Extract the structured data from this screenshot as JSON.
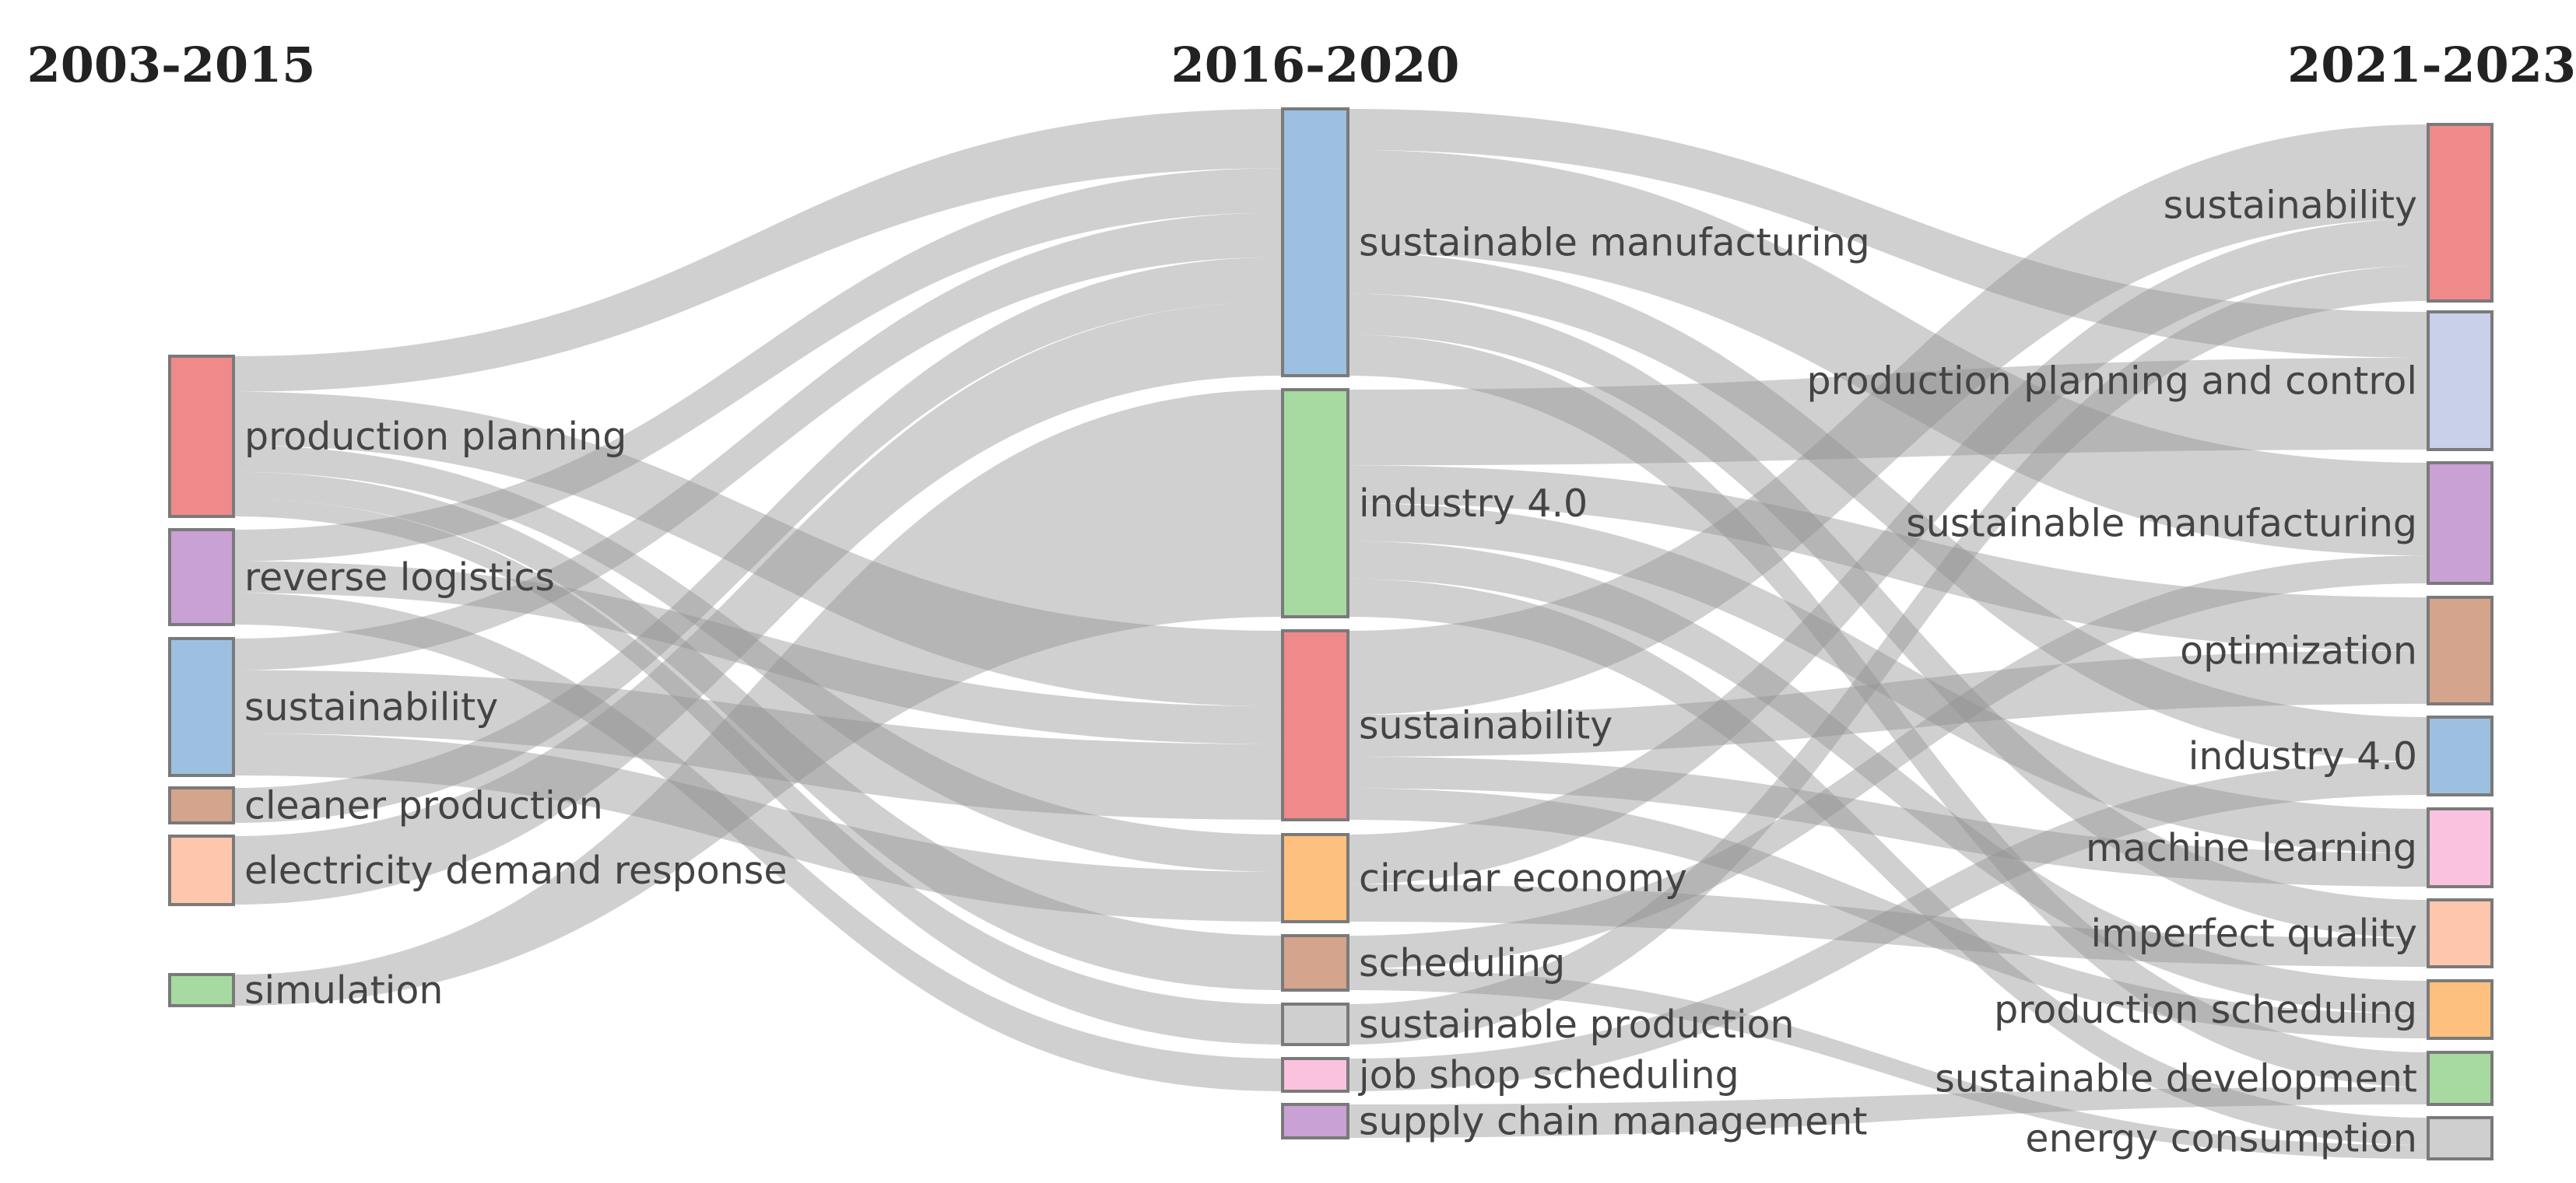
{
  "columns": [
    {
      "title": "2003-2015",
      "nodes": [
        {
          "id": "a_pp",
          "label": "production planning",
          "color": "#f08a8a"
        },
        {
          "id": "a_rl",
          "label": "reverse logistics",
          "color": "#c9a1d4"
        },
        {
          "id": "a_su",
          "label": "sustainability",
          "color": "#9dbfe0"
        },
        {
          "id": "a_cp",
          "label": "cleaner production",
          "color": "#d4a48c"
        },
        {
          "id": "a_ed",
          "label": "electricity demand response",
          "color": "#fdc6ad"
        },
        {
          "id": "a_si",
          "label": "simulation",
          "color": "#a6daa0"
        }
      ]
    },
    {
      "title": "2016-2020",
      "nodes": [
        {
          "id": "b_sm",
          "label": "sustainable manufacturing",
          "color": "#9dbfe0"
        },
        {
          "id": "b_i4",
          "label": "industry 4.0",
          "color": "#a6daa0"
        },
        {
          "id": "b_su",
          "label": "sustainability",
          "color": "#f08a8a"
        },
        {
          "id": "b_ce",
          "label": "circular economy",
          "color": "#fdc07e"
        },
        {
          "id": "b_sc",
          "label": "scheduling",
          "color": "#d4a48c"
        },
        {
          "id": "b_sp",
          "label": "sustainable production",
          "color": "#cfcfcf"
        },
        {
          "id": "b_js",
          "label": "job shop scheduling",
          "color": "#fbc2df"
        },
        {
          "id": "b_scm",
          "label": "supply chain management",
          "color": "#c9a1d4"
        }
      ]
    },
    {
      "title": "2021-2023",
      "nodes": [
        {
          "id": "c_su",
          "label": "sustainability",
          "color": "#f08a8a"
        },
        {
          "id": "c_ppc",
          "label": "production planning and control",
          "color": "#c9d0ea"
        },
        {
          "id": "c_sm",
          "label": "sustainable manufacturing",
          "color": "#c9a1d4"
        },
        {
          "id": "c_op",
          "label": "optimization",
          "color": "#d4a48c"
        },
        {
          "id": "c_i4",
          "label": "industry 4.0",
          "color": "#9dbfe0"
        },
        {
          "id": "c_ml",
          "label": "machine learning",
          "color": "#fbc2df"
        },
        {
          "id": "c_iq",
          "label": "imperfect quality",
          "color": "#fdc6ad"
        },
        {
          "id": "c_ps",
          "label": "production scheduling",
          "color": "#fdc07e"
        },
        {
          "id": "c_sd",
          "label": "sustainable development",
          "color": "#a6daa0"
        },
        {
          "id": "c_ec",
          "label": "energy consumption",
          "color": "#cfcfcf"
        }
      ]
    }
  ],
  "links": [
    {
      "source": "a_pp",
      "target": "b_sm",
      "value": 2
    },
    {
      "source": "a_pp",
      "target": "b_su",
      "value": 3
    },
    {
      "source": "a_pp",
      "target": "b_sc",
      "value": 1.5
    },
    {
      "source": "a_pp",
      "target": "b_ce",
      "value": 1.5
    },
    {
      "source": "a_pp",
      "target": "b_sp",
      "value": 1
    },
    {
      "source": "a_rl",
      "target": "b_sm",
      "value": 1.5
    },
    {
      "source": "a_rl",
      "target": "b_su",
      "value": 1.5
    },
    {
      "source": "a_rl",
      "target": "b_js",
      "value": 1.5
    },
    {
      "source": "a_su",
      "target": "b_sm",
      "value": 1.5
    },
    {
      "source": "a_su",
      "target": "b_su",
      "value": 3
    },
    {
      "source": "a_su",
      "target": "b_ce",
      "value": 2
    },
    {
      "source": "a_cp",
      "target": "b_sm",
      "value": 1.5
    },
    {
      "source": "a_ed",
      "target": "b_sm",
      "value": 2.5
    },
    {
      "source": "a_si",
      "target": "b_i4",
      "value": 1.5
    },
    {
      "source": "b_sm",
      "target": "c_sm",
      "value": 5
    },
    {
      "source": "b_sm",
      "target": "c_ppc",
      "value": 2
    },
    {
      "source": "b_sm",
      "target": "c_i4",
      "value": 2
    },
    {
      "source": "b_sm",
      "target": "c_iq",
      "value": 2
    },
    {
      "source": "b_sm",
      "target": "c_sd",
      "value": 2
    },
    {
      "source": "b_i4",
      "target": "c_ppc",
      "value": 4
    },
    {
      "source": "b_i4",
      "target": "c_ml",
      "value": 2
    },
    {
      "source": "b_i4",
      "target": "c_op",
      "value": 2
    },
    {
      "source": "b_i4",
      "target": "c_ps",
      "value": 2
    },
    {
      "source": "b_i4",
      "target": "c_ec",
      "value": 2
    },
    {
      "source": "b_su",
      "target": "c_su",
      "value": 4
    },
    {
      "source": "b_su",
      "target": "c_op",
      "value": 2
    },
    {
      "source": "b_su",
      "target": "c_ml",
      "value": 1.5
    },
    {
      "source": "b_su",
      "target": "c_ps",
      "value": 1.5
    },
    {
      "source": "b_ce",
      "target": "c_su",
      "value": 2
    },
    {
      "source": "b_ce",
      "target": "c_iq",
      "value": 1.5
    },
    {
      "source": "b_sc",
      "target": "c_sm",
      "value": 1.5
    },
    {
      "source": "b_sc",
      "target": "c_ec",
      "value": 1
    },
    {
      "source": "b_sp",
      "target": "c_su",
      "value": 1.5
    },
    {
      "source": "b_js",
      "target": "c_i4",
      "value": 1.5
    },
    {
      "source": "b_scm",
      "target": "c_sd",
      "value": 1
    }
  ]
}
